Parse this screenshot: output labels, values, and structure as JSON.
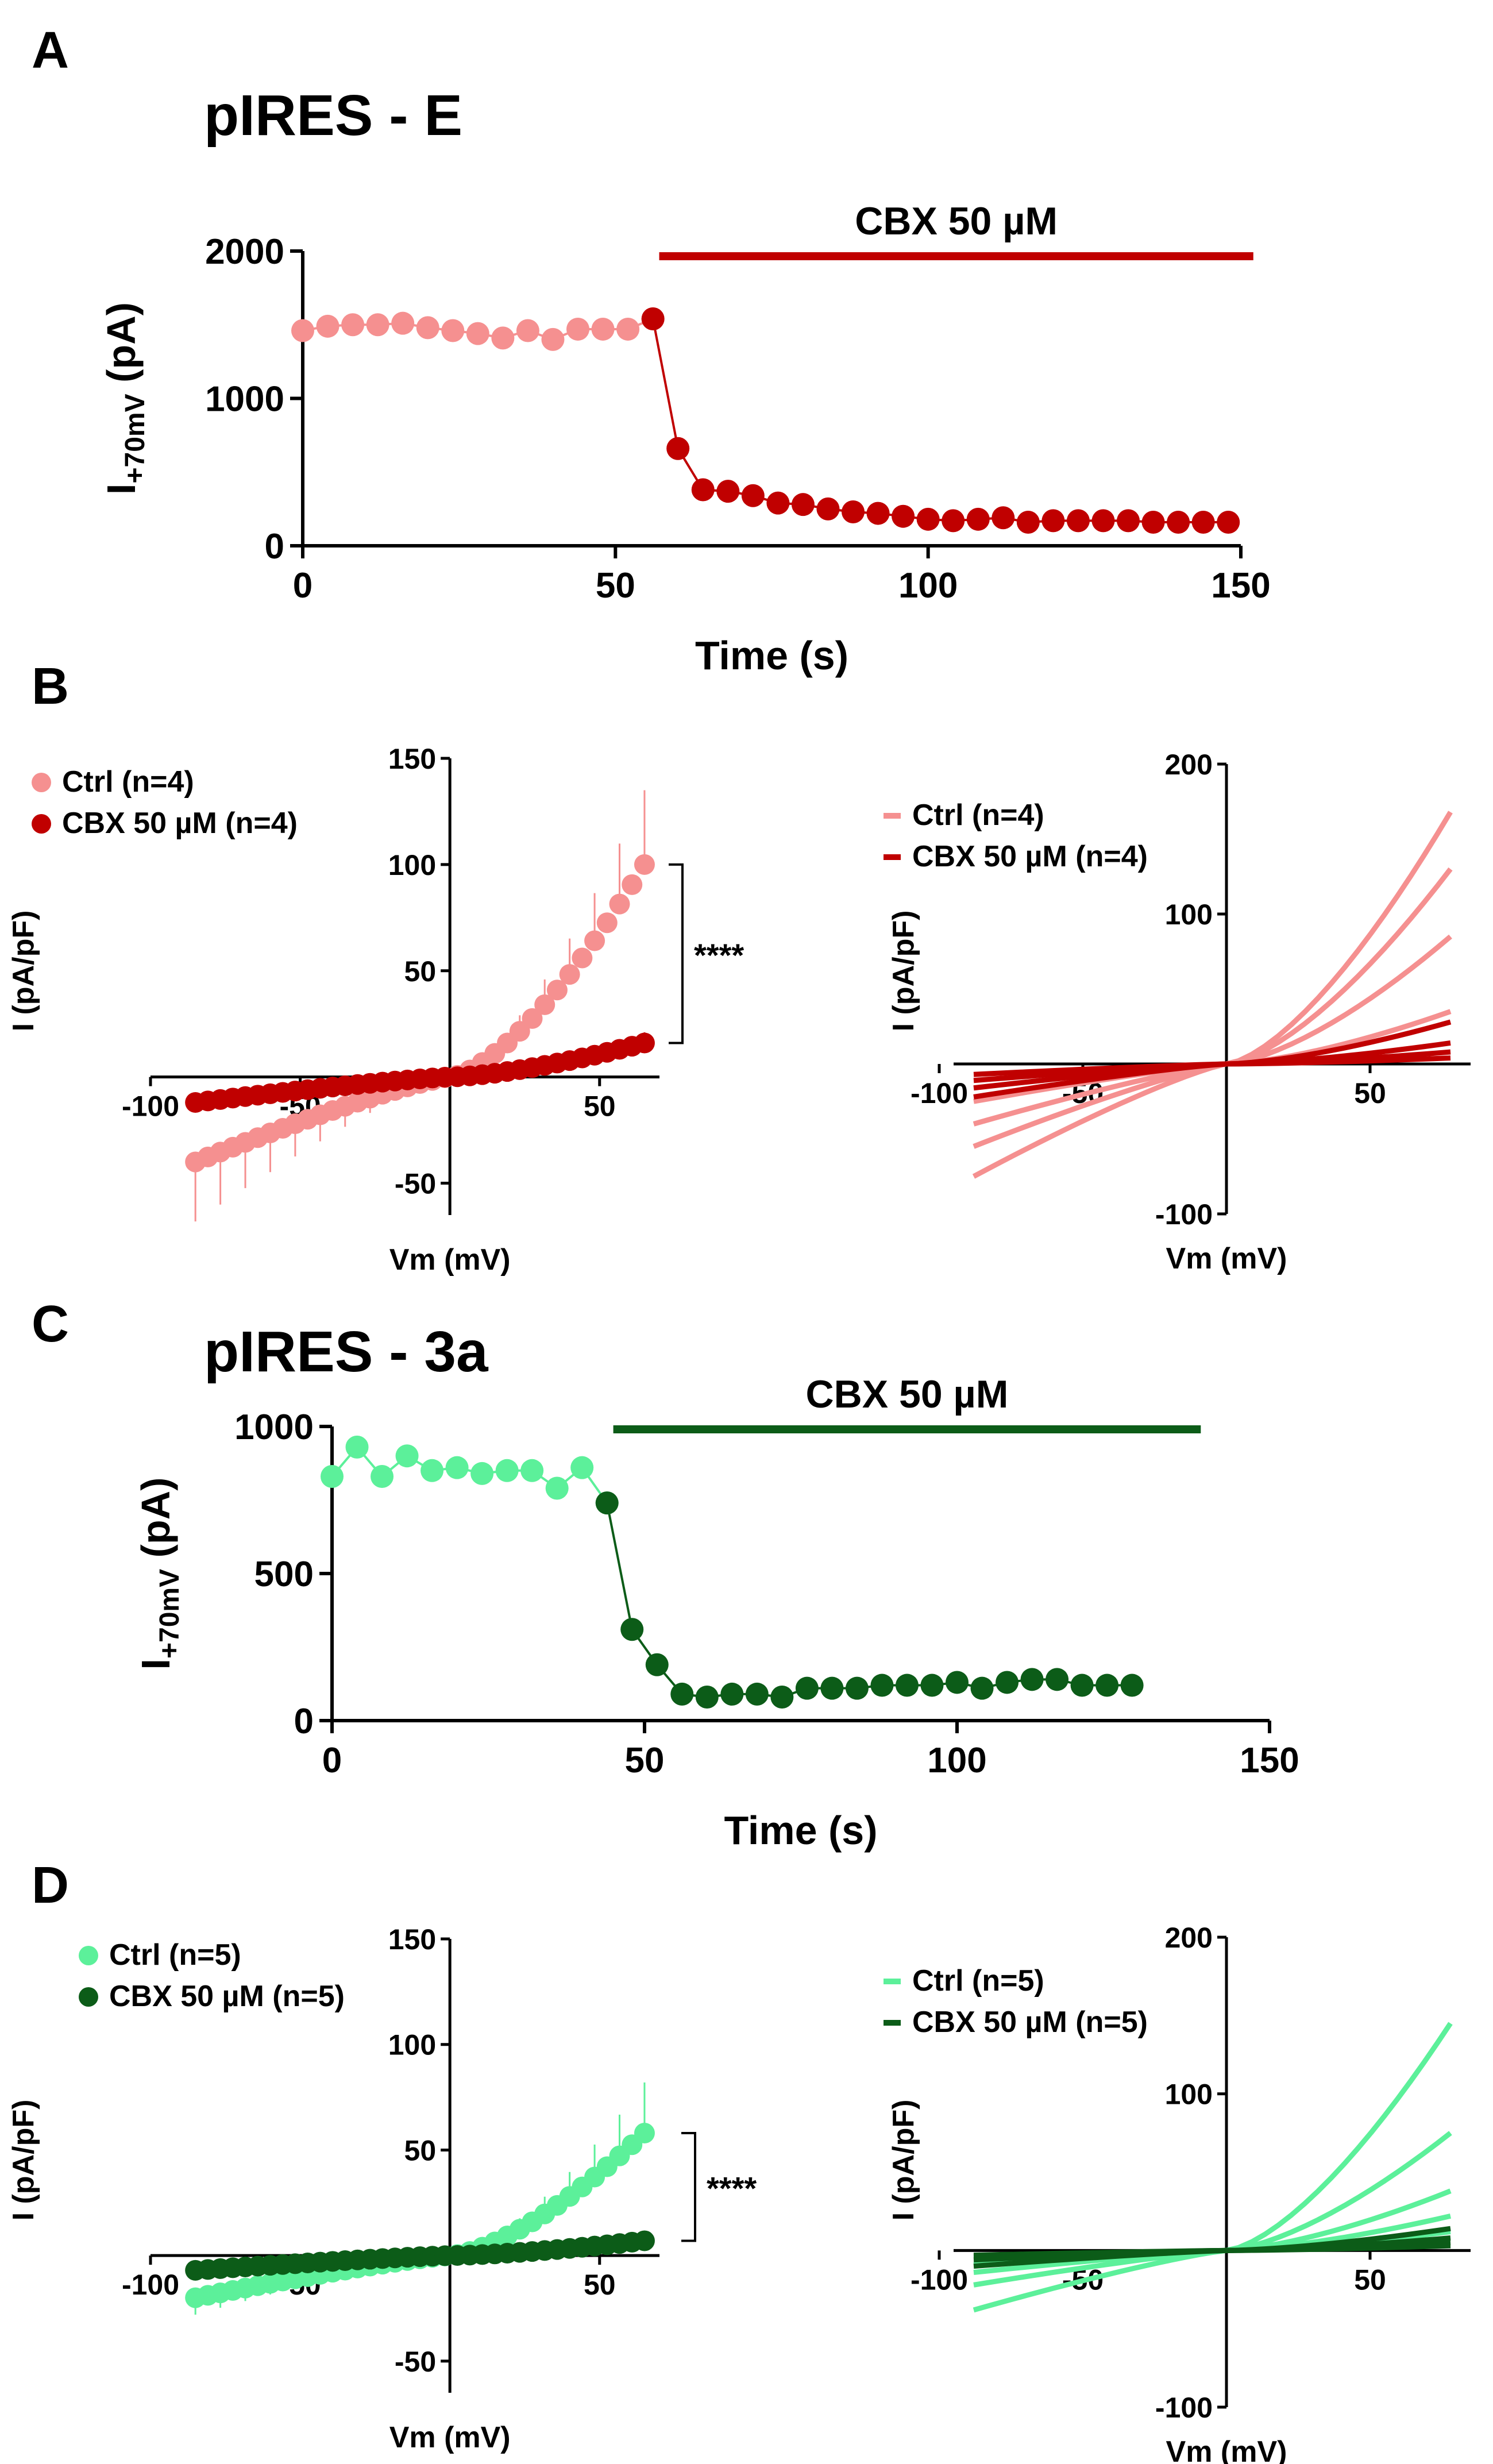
{
  "colors": {
    "e_ctrl": "#f59090",
    "e_cbx": "#c00000",
    "a_ctrl": "#5cf09a",
    "a_cbx": "#0c5c18"
  },
  "chart_data": [
    {
      "id": "A",
      "panel_letter": "A",
      "type": "scatter",
      "title": "pIRES - E",
      "annotation": "CBX 50 µM",
      "annotation_range_s": [
        57,
        152
      ],
      "xlabel": "Time (s)",
      "ylabel_main": "I",
      "ylabel_sub": "+70mV",
      "ylabel_unit": "(pA)",
      "xlim": [
        0,
        150
      ],
      "ylim": [
        0,
        2000
      ],
      "xticks": [
        "0",
        "50",
        "100",
        "150"
      ],
      "yticks": [
        "0",
        "1000",
        "2000"
      ],
      "series": [
        {
          "name": "Ctrl",
          "x": [
            0,
            4,
            8,
            12,
            16,
            20,
            24,
            28,
            32,
            36,
            40,
            44,
            48,
            52,
            56
          ],
          "y": [
            1460,
            1490,
            1500,
            1500,
            1510,
            1480,
            1460,
            1440,
            1410,
            1460,
            1400,
            1470,
            1470,
            1470,
            1540
          ]
        },
        {
          "name": "CBX 50 µM",
          "x": [
            56,
            60,
            64,
            68,
            72,
            76,
            80,
            84,
            88,
            92,
            96,
            100,
            104,
            108,
            112,
            116,
            120,
            124,
            128,
            132,
            136,
            140,
            144,
            148
          ],
          "y": [
            1540,
            660,
            380,
            370,
            340,
            290,
            280,
            250,
            230,
            220,
            200,
            180,
            170,
            180,
            190,
            160,
            170,
            170,
            170,
            170,
            160,
            160,
            160,
            160
          ]
        }
      ]
    },
    {
      "id": "B_left",
      "panel_letter": "B",
      "type": "scatter",
      "xlabel": "Vm (mV)",
      "ylabel": "I (pA/pF)",
      "xlim": [
        -100,
        70
      ],
      "ylim": [
        -65,
        150
      ],
      "xticks": [
        "-100",
        "-50",
        "50"
      ],
      "yticks": [
        "-50",
        "50",
        "100",
        "150"
      ],
      "significance": "****",
      "legend": [
        {
          "label": "Ctrl (n=4)",
          "marker": "circle"
        },
        {
          "label": "CBX 50 µM  (n=4)",
          "marker": "circle"
        }
      ],
      "series": [
        {
          "name": "Ctrl (n=4)",
          "v_range": [
            -85,
            65
          ],
          "i_at_min": -40,
          "i_at_max": 100,
          "sem_at_min": 28,
          "sem_at_max": 35
        },
        {
          "name": "CBX 50 µM (n=4)",
          "v_range": [
            -85,
            65
          ],
          "i_at_min": -12,
          "i_at_max": 16,
          "sem_at_min": 4,
          "sem_at_max": 5
        }
      ]
    },
    {
      "id": "B_right",
      "type": "line",
      "xlabel": "Vm (mV)",
      "ylabel": "I (pA/pF)",
      "xlim": [
        -95,
        85
      ],
      "ylim": [
        -100,
        200
      ],
      "xticks": [
        "-100",
        "-50",
        "50"
      ],
      "yticks": [
        "-100",
        "100",
        "200"
      ],
      "legend": [
        {
          "label": "Ctrl (n=4)",
          "marker": "line"
        },
        {
          "label": "CBX 50 µM (n=4)",
          "marker": "line"
        }
      ],
      "series": [
        {
          "group": "Ctrl",
          "v_range": [
            -88,
            78
          ],
          "i_at_min": -75,
          "i_at_max": 168
        },
        {
          "group": "Ctrl",
          "v_range": [
            -88,
            78
          ],
          "i_at_min": -55,
          "i_at_max": 130
        },
        {
          "group": "Ctrl",
          "v_range": [
            -88,
            78
          ],
          "i_at_min": -40,
          "i_at_max": 85
        },
        {
          "group": "Ctrl",
          "v_range": [
            -88,
            78
          ],
          "i_at_min": -25,
          "i_at_max": 35
        },
        {
          "group": "CBX",
          "v_range": [
            -88,
            78
          ],
          "i_at_min": -22,
          "i_at_max": 28
        },
        {
          "group": "CBX",
          "v_range": [
            -88,
            78
          ],
          "i_at_min": -16,
          "i_at_max": 14
        },
        {
          "group": "CBX",
          "v_range": [
            -88,
            78
          ],
          "i_at_min": -11,
          "i_at_max": 8
        },
        {
          "group": "CBX",
          "v_range": [
            -88,
            78
          ],
          "i_at_min": -7,
          "i_at_max": 4
        }
      ]
    },
    {
      "id": "C",
      "panel_letter": "C",
      "type": "scatter",
      "title": "pIRES - 3a",
      "annotation": "CBX 50 µM",
      "annotation_range_s": [
        45,
        139
      ],
      "xlabel": "Time (s)",
      "ylabel_main": "I",
      "ylabel_sub": "+70mV",
      "ylabel_unit": "(pA)",
      "xlim": [
        0,
        150
      ],
      "ylim": [
        0,
        1000
      ],
      "xticks": [
        "0",
        "50",
        "100",
        "150"
      ],
      "yticks": [
        "0",
        "500",
        "1000"
      ],
      "series": [
        {
          "name": "Ctrl",
          "x": [
            0,
            4,
            8,
            12,
            16,
            20,
            24,
            28,
            32,
            36,
            40,
            44
          ],
          "y": [
            830,
            930,
            830,
            900,
            850,
            860,
            840,
            850,
            850,
            790,
            860,
            740
          ]
        },
        {
          "name": "CBX 50 µM",
          "x": [
            44,
            48,
            52,
            56,
            60,
            64,
            68,
            72,
            76,
            80,
            84,
            88,
            92,
            96,
            100,
            104,
            108,
            112,
            116,
            120,
            124,
            128
          ],
          "y": [
            740,
            310,
            190,
            90,
            80,
            90,
            90,
            80,
            110,
            110,
            110,
            120,
            120,
            120,
            130,
            110,
            130,
            140,
            140,
            120,
            120,
            120
          ]
        }
      ]
    },
    {
      "id": "D_left",
      "panel_letter": "D",
      "type": "scatter",
      "xlabel": "Vm (mV)",
      "ylabel": "I (pA/pF)",
      "xlim": [
        -100,
        70
      ],
      "ylim": [
        -65,
        150
      ],
      "xticks": [
        "-100",
        "-50",
        "50"
      ],
      "yticks": [
        "-50",
        "50",
        "100",
        "150"
      ],
      "significance": "****",
      "legend": [
        {
          "label": "Ctrl (n=5)",
          "marker": "circle"
        },
        {
          "label": "CBX 50 µM (n=5)",
          "marker": "circle"
        }
      ],
      "series": [
        {
          "name": "Ctrl (n=5)",
          "v_range": [
            -85,
            65
          ],
          "i_at_min": -20,
          "i_at_max": 58,
          "sem_at_min": 8,
          "sem_at_max": 24
        },
        {
          "name": "CBX 50 µM (n=5)",
          "v_range": [
            -85,
            65
          ],
          "i_at_min": -7,
          "i_at_max": 7,
          "sem_at_min": 2,
          "sem_at_max": 2
        }
      ]
    },
    {
      "id": "D_right",
      "type": "line",
      "xlabel": "Vm (mV)",
      "ylabel": "I (pA/pF)",
      "xlim": [
        -95,
        85
      ],
      "ylim": [
        -100,
        200
      ],
      "xticks": [
        "-100",
        "-50",
        "50"
      ],
      "yticks": [
        "-100",
        "100",
        "200"
      ],
      "legend": [
        {
          "label": "Ctrl (n=5)",
          "marker": "line"
        },
        {
          "label": "CBX 50 µM (n=5)",
          "marker": "line"
        }
      ],
      "series": [
        {
          "group": "Ctrl",
          "v_range": [
            -88,
            78
          ],
          "i_at_min": -38,
          "i_at_max": 145
        },
        {
          "group": "Ctrl",
          "v_range": [
            -88,
            78
          ],
          "i_at_min": -22,
          "i_at_max": 75
        },
        {
          "group": "Ctrl",
          "v_range": [
            -88,
            78
          ],
          "i_at_min": -14,
          "i_at_max": 38
        },
        {
          "group": "Ctrl",
          "v_range": [
            -88,
            78
          ],
          "i_at_min": -9,
          "i_at_max": 22
        },
        {
          "group": "Ctrl",
          "v_range": [
            -88,
            78
          ],
          "i_at_min": -5,
          "i_at_max": 12
        },
        {
          "group": "CBX",
          "v_range": [
            -88,
            78
          ],
          "i_at_min": -10,
          "i_at_max": 14
        },
        {
          "group": "CBX",
          "v_range": [
            -88,
            78
          ],
          "i_at_min": -6,
          "i_at_max": 8
        },
        {
          "group": "CBX",
          "v_range": [
            -88,
            78
          ],
          "i_at_min": -4,
          "i_at_max": 5
        },
        {
          "group": "CBX",
          "v_range": [
            -88,
            78
          ],
          "i_at_min": -3,
          "i_at_max": 3
        }
      ]
    }
  ]
}
